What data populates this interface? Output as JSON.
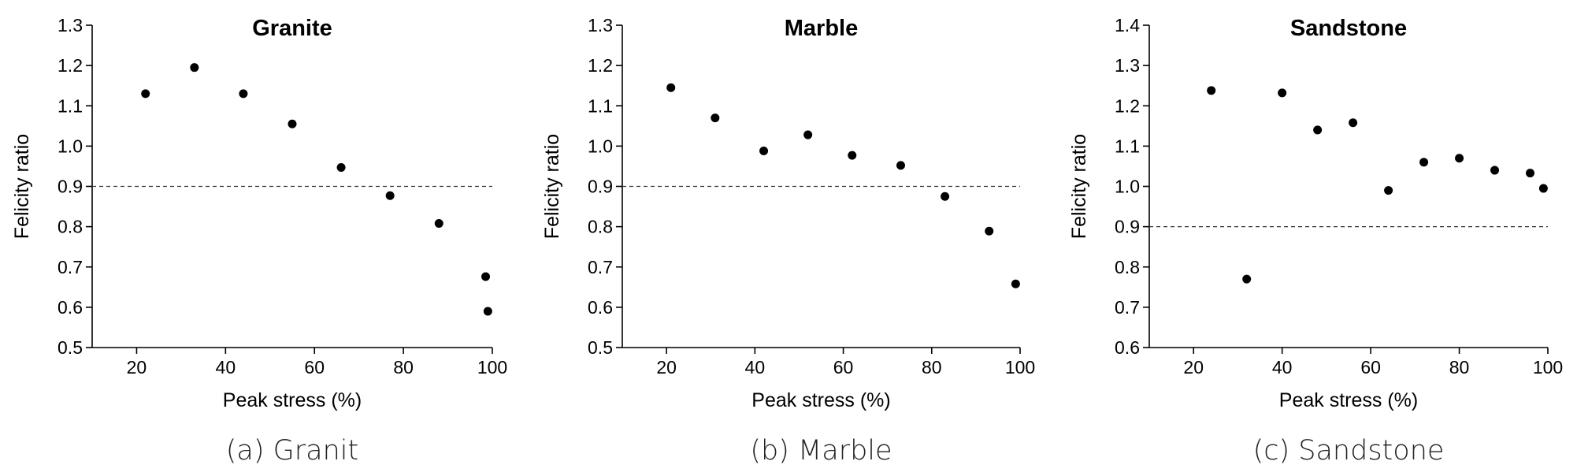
{
  "chart_data": [
    {
      "type": "scatter",
      "title": "Granite",
      "caption": "(a) Granit",
      "xlabel": "Peak stress (%)",
      "ylabel": "Felicity ratio",
      "xlim": [
        10,
        100
      ],
      "ylim": [
        0.5,
        1.3
      ],
      "xticks": [
        20,
        40,
        60,
        80,
        100
      ],
      "yticks": [
        0.5,
        0.6,
        0.7,
        0.8,
        0.9,
        1.0,
        1.1,
        1.2,
        1.3
      ],
      "ytick_labels": [
        "0.5",
        "0.6",
        "0.7",
        "0.8",
        "0.9",
        "1.0",
        "1.1",
        "1.2",
        "1.3"
      ],
      "reference_line": 0.9,
      "x": [
        22,
        33,
        44,
        55,
        66,
        77,
        88,
        98.5,
        99
      ],
      "y": [
        1.13,
        1.195,
        1.13,
        1.055,
        0.947,
        0.877,
        0.808,
        0.676,
        0.59
      ]
    },
    {
      "type": "scatter",
      "title": "Marble",
      "caption": "(b) Marble",
      "xlabel": "Peak stress (%)",
      "ylabel": "Felicity ratio",
      "xlim": [
        10,
        100
      ],
      "ylim": [
        0.5,
        1.3
      ],
      "xticks": [
        20,
        40,
        60,
        80,
        100
      ],
      "yticks": [
        0.5,
        0.6,
        0.7,
        0.8,
        0.9,
        1.0,
        1.1,
        1.2,
        1.3
      ],
      "ytick_labels": [
        "0.5",
        "0.6",
        "0.7",
        "0.8",
        "0.9",
        "1.0",
        "1.1",
        "1.2",
        "1.3"
      ],
      "reference_line": 0.9,
      "x": [
        21,
        31,
        42,
        52,
        62,
        73,
        83,
        93,
        99
      ],
      "y": [
        1.145,
        1.07,
        0.988,
        1.028,
        0.977,
        0.952,
        0.875,
        0.789,
        0.658
      ]
    },
    {
      "type": "scatter",
      "title": "Sandstone",
      "caption": "(c) Sandstone",
      "xlabel": "Peak stress (%)",
      "ylabel": "Felicity ratio",
      "xlim": [
        10,
        100
      ],
      "ylim": [
        0.6,
        1.4
      ],
      "xticks": [
        20,
        40,
        60,
        80,
        100
      ],
      "yticks": [
        0.6,
        0.7,
        0.8,
        0.9,
        1.0,
        1.1,
        1.2,
        1.3,
        1.4
      ],
      "ytick_labels": [
        "0.6",
        "0.7",
        "0.8",
        "0.9",
        "1.0",
        "1.1",
        "1.2",
        "1.3",
        "1.4"
      ],
      "reference_line": 0.9,
      "x": [
        24,
        32,
        40,
        48,
        56,
        64,
        72,
        80,
        88,
        96,
        99
      ],
      "y": [
        1.238,
        0.77,
        1.232,
        1.14,
        1.158,
        0.99,
        1.06,
        1.07,
        1.04,
        1.033,
        0.995
      ]
    }
  ]
}
